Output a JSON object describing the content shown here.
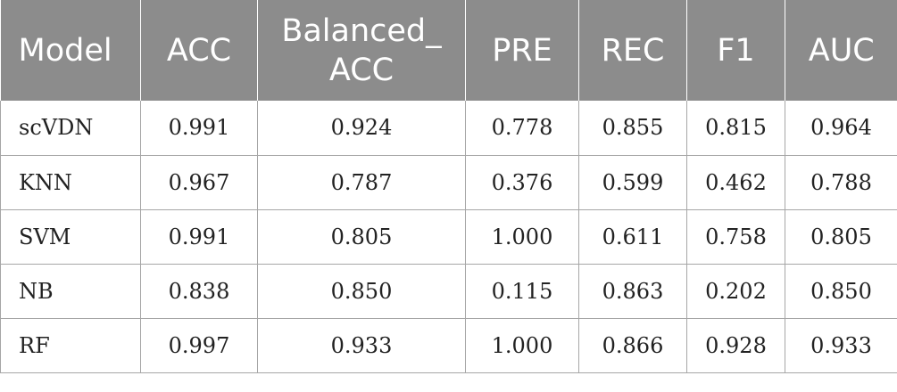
{
  "table": {
    "headers": [
      "Model",
      "ACC",
      "Balanced_ ACC",
      "PRE",
      "REC",
      "F1",
      "AUC"
    ],
    "rows": [
      [
        "scVDN",
        "0.991",
        "0.924",
        "0.778",
        "0.855",
        "0.815",
        "0.964"
      ],
      [
        "KNN",
        "0.967",
        "0.787",
        "0.376",
        "0.599",
        "0.462",
        "0.788"
      ],
      [
        "SVM",
        "0.991",
        "0.805",
        "1.000",
        "0.611",
        "0.758",
        "0.805"
      ],
      [
        "NB",
        "0.838",
        "0.850",
        "0.115",
        "0.863",
        "0.202",
        "0.850"
      ],
      [
        "RF",
        "0.997",
        "0.933",
        "1.000",
        "0.866",
        "0.928",
        "0.933"
      ]
    ]
  },
  "colors": {
    "header_bg": "#8c8c8c",
    "header_text": "#ffffff",
    "grid_line": "#a6a6a6"
  }
}
